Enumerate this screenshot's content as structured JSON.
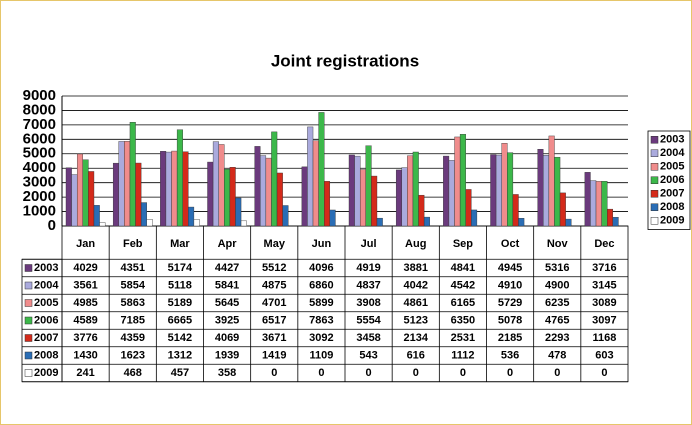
{
  "chart_data": {
    "type": "bar",
    "title": "Joint registrations",
    "categories": [
      "Jan",
      "Feb",
      "Mar",
      "Apr",
      "May",
      "Jun",
      "Jul",
      "Aug",
      "Sep",
      "Oct",
      "Nov",
      "Dec"
    ],
    "series": [
      {
        "name": "2003",
        "color": "#6b3a7d",
        "values": [
          4029,
          4351,
          5174,
          4427,
          5512,
          4096,
          4919,
          3881,
          4841,
          4945,
          5316,
          3716
        ]
      },
      {
        "name": "2004",
        "color": "#aaaadd",
        "values": [
          3561,
          5854,
          5118,
          5841,
          4875,
          6860,
          4837,
          4042,
          4542,
          4910,
          4900,
          3145
        ]
      },
      {
        "name": "2005",
        "color": "#f08c8c",
        "values": [
          4985,
          5863,
          5189,
          5645,
          4701,
          5899,
          3908,
          4861,
          6165,
          5729,
          6235,
          3089
        ]
      },
      {
        "name": "2006",
        "color": "#3cb84a",
        "values": [
          4589,
          7185,
          6665,
          3925,
          6517,
          7863,
          5554,
          5123,
          6350,
          5078,
          4765,
          3097
        ]
      },
      {
        "name": "2007",
        "color": "#d42a1a",
        "values": [
          3776,
          4359,
          5142,
          4069,
          3671,
          3092,
          3458,
          2134,
          2531,
          2185,
          2293,
          1168
        ]
      },
      {
        "name": "2008",
        "color": "#2a6db5",
        "values": [
          1430,
          1623,
          1312,
          1939,
          1419,
          1109,
          543,
          616,
          1112,
          536,
          478,
          603
        ]
      },
      {
        "name": "2009",
        "color": "#ffffff",
        "values": [
          241,
          468,
          457,
          358,
          0,
          0,
          0,
          0,
          0,
          0,
          0,
          0
        ]
      }
    ],
    "ylim": [
      0,
      9000
    ],
    "yticks": [
      0,
      1000,
      2000,
      3000,
      4000,
      5000,
      6000,
      7000,
      8000,
      9000
    ],
    "grid": true
  }
}
